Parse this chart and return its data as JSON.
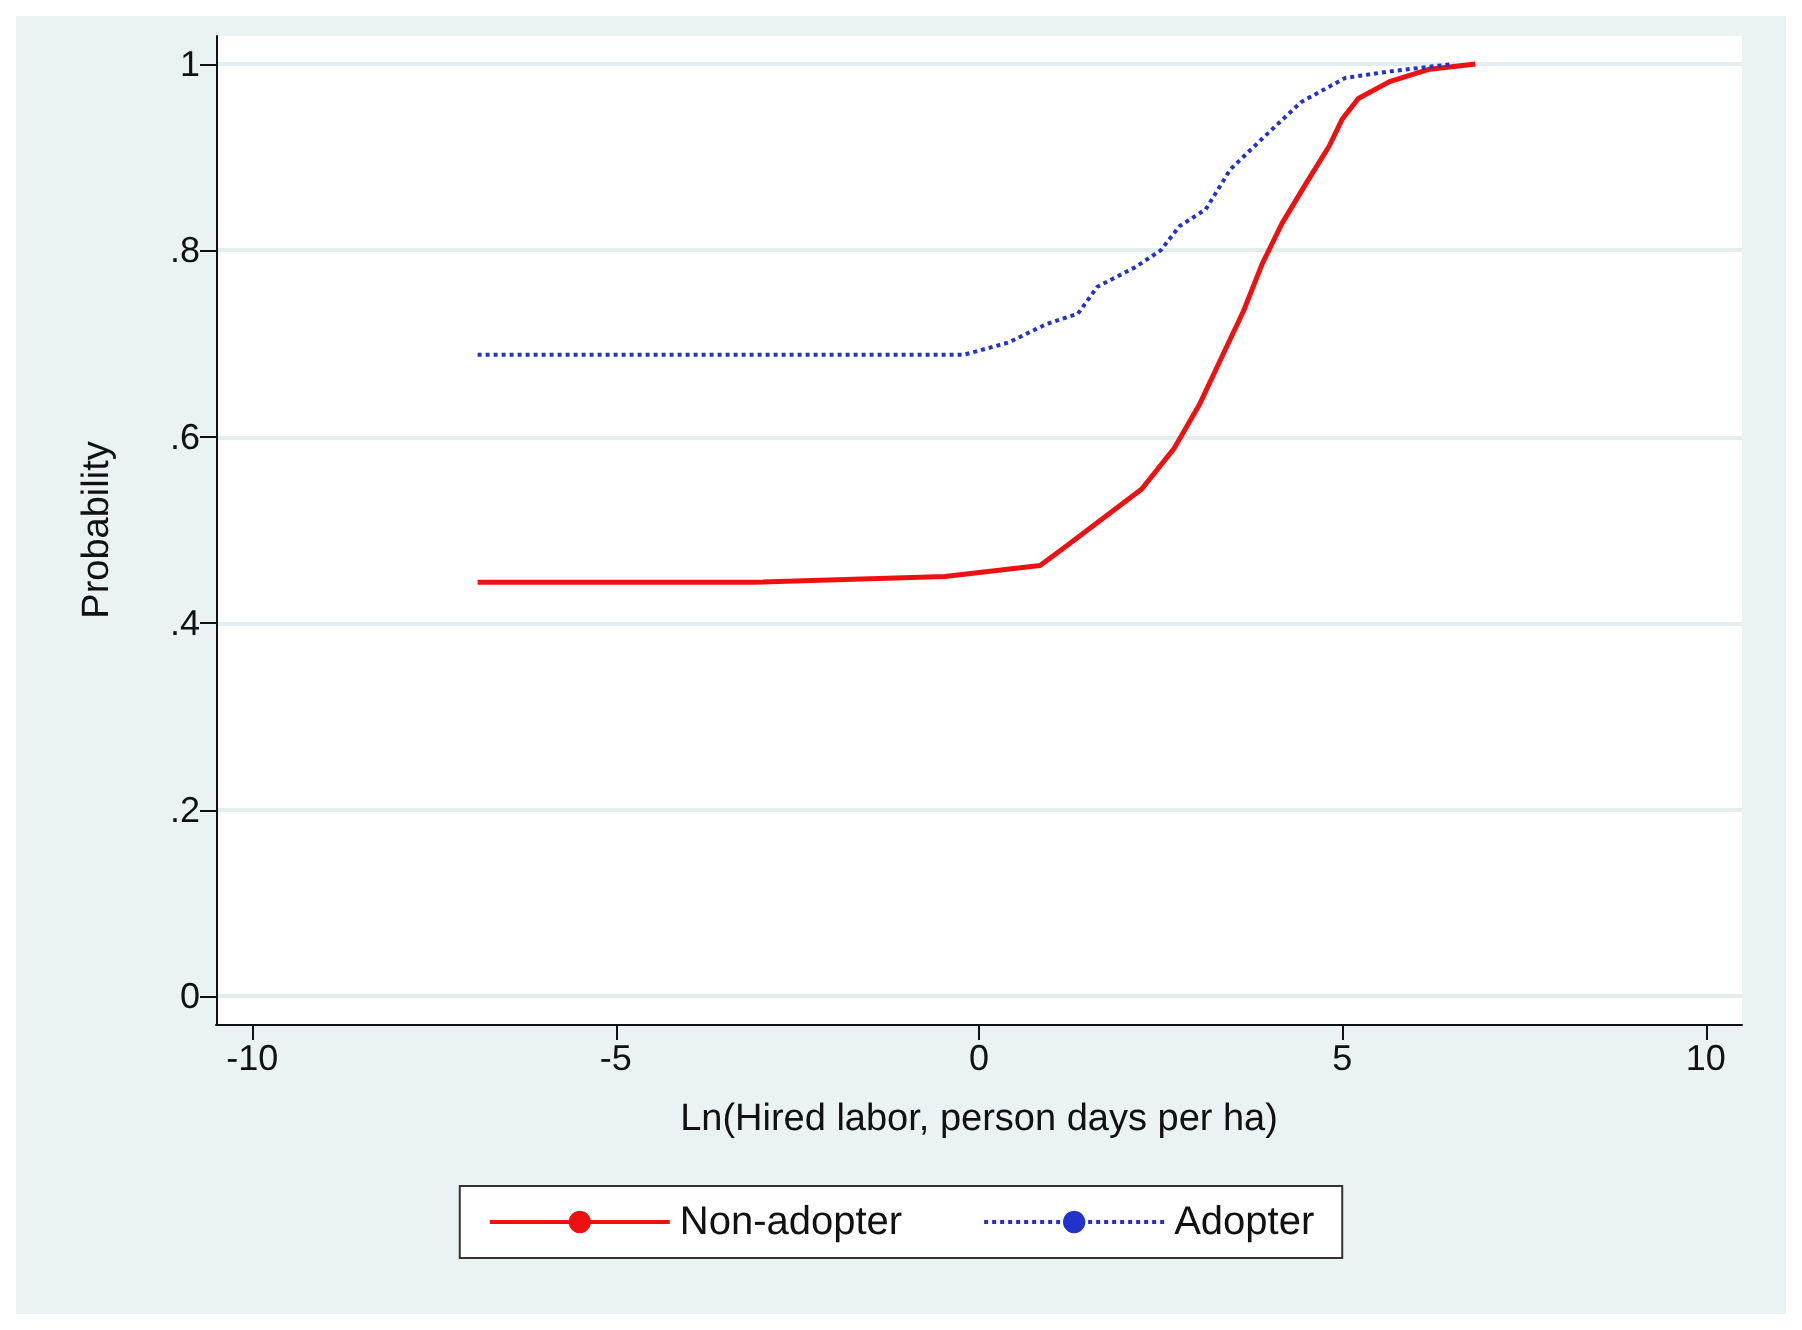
{
  "chart_data": {
    "type": "line",
    "xlabel": "Ln(Hired labor, person days per ha)",
    "ylabel": "Probability",
    "xlim": [
      -10.5,
      10.5
    ],
    "xticks": [
      -10,
      -5,
      0,
      5,
      10
    ],
    "ylim": [
      -0.03,
      1.03
    ],
    "yticks": [
      {
        "value": 0,
        "label": "0"
      },
      {
        "value": 0.2,
        "label": ".2"
      },
      {
        "value": 0.4,
        "label": ".4"
      },
      {
        "value": 0.6,
        "label": ".6"
      },
      {
        "value": 0.8,
        "label": ".8"
      },
      {
        "value": 1,
        "label": "1"
      }
    ],
    "grid": "y",
    "legend": "bottom",
    "marker": "none",
    "series": [
      {
        "name": "Non-adopter",
        "color": "#ee1111",
        "line_style": "solid",
        "x": [
          -6.9,
          -3.1,
          -0.47,
          0.84,
          1.19,
          1.63,
          2.24,
          2.68,
          3.03,
          3.38,
          3.64,
          3.9,
          4.17,
          4.51,
          4.82,
          5.0,
          5.22,
          5.65,
          6.18,
          6.83
        ],
        "values": [
          0.444,
          0.444,
          0.45,
          0.462,
          0.482,
          0.508,
          0.544,
          0.587,
          0.634,
          0.692,
          0.735,
          0.786,
          0.829,
          0.873,
          0.912,
          0.941,
          0.963,
          0.981,
          0.994,
          1.0
        ]
      },
      {
        "name": "Adopter",
        "color": "#2233cc",
        "line_style": "dotted",
        "x": [
          -6.9,
          -0.21,
          0.4,
          0.93,
          1.36,
          1.63,
          2.15,
          2.5,
          2.76,
          3.12,
          3.46,
          3.9,
          4.43,
          5.04,
          5.65,
          6.53
        ],
        "values": [
          0.688,
          0.688,
          0.701,
          0.721,
          0.732,
          0.761,
          0.782,
          0.8,
          0.826,
          0.844,
          0.887,
          0.92,
          0.959,
          0.985,
          0.992,
          1.0
        ]
      }
    ]
  }
}
